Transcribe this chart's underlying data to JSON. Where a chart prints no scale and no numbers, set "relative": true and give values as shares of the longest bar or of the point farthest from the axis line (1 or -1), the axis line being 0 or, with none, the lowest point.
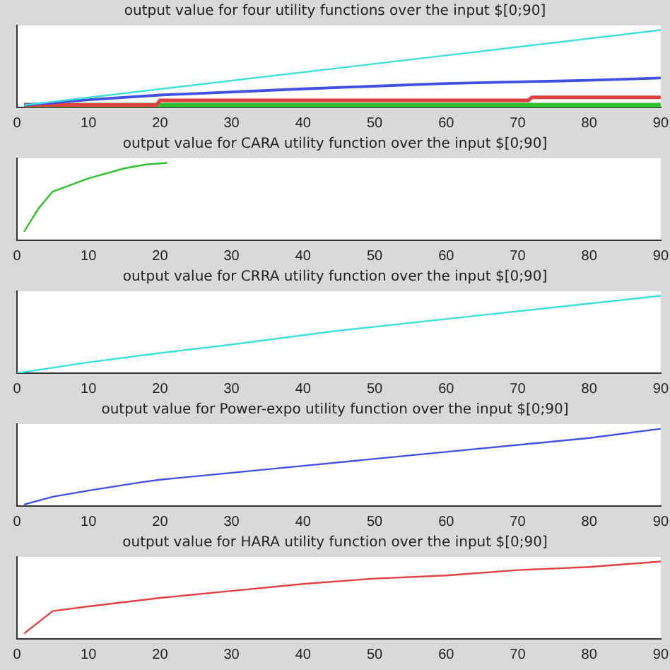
{
  "chart_data": [
    {
      "type": "line",
      "title": "output value for four utility functions over the input $[0;90]",
      "relative": true,
      "xlim": [
        0,
        90
      ],
      "xticks": [
        0,
        10,
        20,
        30,
        40,
        50,
        60,
        70,
        80,
        90
      ],
      "marker": "none",
      "legend": false,
      "grid": false,
      "series": [
        {
          "color": "#40e0d8",
          "x": [
            1,
            90
          ],
          "values": [
            0.03,
            1
          ]
        },
        {
          "color": "#4050e0",
          "x": [
            1,
            5,
            10,
            20,
            40,
            60,
            80,
            90
          ],
          "values": [
            0.03,
            0.06,
            0.1,
            0.16,
            0.24,
            0.31,
            0.35,
            0.38
          ]
        },
        {
          "color": "#e04040",
          "x": [
            1,
            19.5,
            20,
            71.5,
            72,
            90
          ],
          "values": [
            0.03,
            0.03,
            0.09,
            0.09,
            0.13,
            0.13
          ]
        },
        {
          "color": "#30c030",
          "x": [
            1,
            90
          ],
          "values": [
            0.03,
            0.03
          ]
        }
      ]
    },
    {
      "type": "line",
      "title": "output value for CARA utility function over the input $[0;90]",
      "relative": true,
      "xlim": [
        0,
        90
      ],
      "xticks": [
        0,
        10,
        20,
        30,
        40,
        50,
        60,
        70,
        80,
        90
      ],
      "marker": "none",
      "legend": false,
      "grid": false,
      "series": [
        {
          "color": "#30c030",
          "x": [
            1,
            3,
            5,
            10,
            15,
            18,
            21
          ],
          "values": [
            0.11,
            0.41,
            0.63,
            0.8,
            0.93,
            0.98,
            1
          ]
        }
      ]
    },
    {
      "type": "line",
      "title": "output value for CRRA utility function over the input $[0;90]",
      "relative": true,
      "xlim": [
        0,
        90
      ],
      "xticks": [
        0,
        10,
        20,
        30,
        40,
        50,
        60,
        70,
        80,
        90
      ],
      "marker": "none",
      "legend": false,
      "grid": false,
      "series": [
        {
          "color": "#40e0d8",
          "x": [
            0,
            10,
            20,
            30,
            45,
            60,
            75,
            90
          ],
          "values": [
            0,
            0.14,
            0.26,
            0.37,
            0.55,
            0.7,
            0.85,
            1
          ]
        }
      ]
    },
    {
      "type": "line",
      "title": "output value for Power-expo utility function over the input $[0;90]",
      "relative": true,
      "xlim": [
        0,
        90
      ],
      "xticks": [
        0,
        10,
        20,
        30,
        40,
        50,
        60,
        70,
        80,
        90
      ],
      "marker": "none",
      "legend": false,
      "grid": false,
      "series": [
        {
          "color": "#4050e0",
          "x": [
            1,
            5,
            10,
            17.5,
            20,
            40,
            60,
            80,
            90
          ],
          "values": [
            0.02,
            0.12,
            0.2,
            0.31,
            0.34,
            0.52,
            0.7,
            0.88,
            1
          ]
        }
      ]
    },
    {
      "type": "line",
      "title": "output value for HARA utility function over the input $[0;90]",
      "relative": true,
      "xlim": [
        0,
        90
      ],
      "xticks": [
        0,
        10,
        20,
        30,
        40,
        50,
        60,
        70,
        80,
        90
      ],
      "marker": "none",
      "legend": false,
      "grid": false,
      "series": [
        {
          "color": "#e04040",
          "x": [
            1,
            5,
            10,
            20,
            30,
            40,
            50,
            60,
            70,
            80,
            90
          ],
          "values": [
            0.07,
            0.36,
            0.42,
            0.53,
            0.62,
            0.71,
            0.78,
            0.82,
            0.89,
            0.93,
            1
          ]
        }
      ]
    }
  ]
}
